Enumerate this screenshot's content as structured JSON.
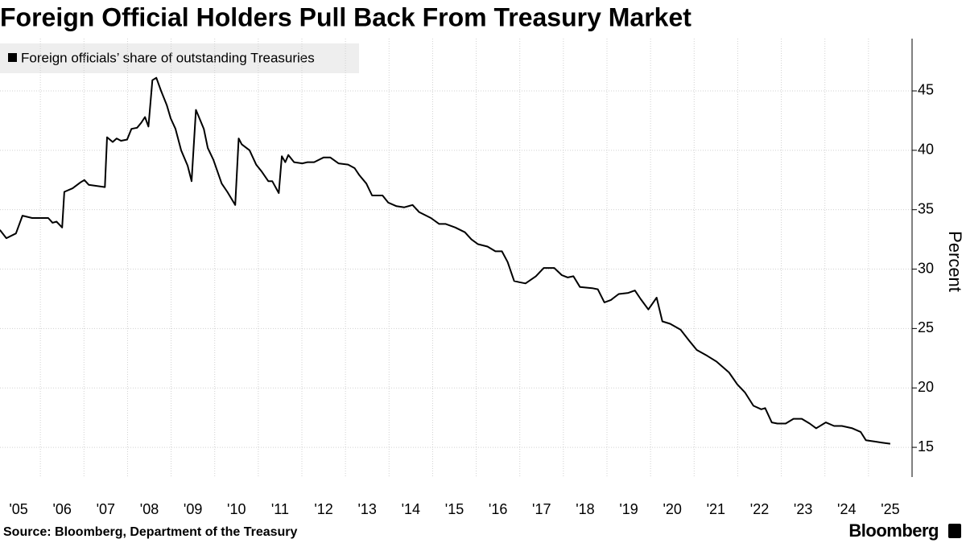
{
  "chart_data": {
    "type": "line",
    "title": "Foreign Official Holders Pull Back From Treasury Market",
    "y_label": "Percent",
    "source": "Source: Bloomberg, Department of the Treasury",
    "logo": "Bloomberg",
    "x": [
      2005.07,
      2005.22,
      2005.44,
      2005.59,
      2005.81,
      2006.18,
      2006.28,
      2006.37,
      2006.5,
      2006.55,
      2006.74,
      2006.92,
      2007.01,
      2007.11,
      2007.48,
      2007.53,
      2007.66,
      2007.75,
      2007.85,
      2007.99,
      2008.09,
      2008.22,
      2008.31,
      2008.4,
      2008.48,
      2008.57,
      2008.66,
      2008.77,
      2008.9,
      2008.99,
      2009.1,
      2009.23,
      2009.38,
      2009.47,
      2009.57,
      2009.66,
      2009.75,
      2009.84,
      2009.97,
      2010.16,
      2010.29,
      2010.47,
      2010.55,
      2010.62,
      2010.8,
      2010.95,
      2011.08,
      2011.23,
      2011.32,
      2011.47,
      2011.54,
      2011.62,
      2011.69,
      2011.82,
      2012.01,
      2012.13,
      2012.28,
      2012.5,
      2012.65,
      2012.84,
      2013.06,
      2013.21,
      2013.32,
      2013.48,
      2013.61,
      2013.85,
      2013.98,
      2014.17,
      2014.35,
      2014.54,
      2014.69,
      2014.96,
      2015.15,
      2015.3,
      2015.52,
      2015.74,
      2015.89,
      2016.04,
      2016.26,
      2016.44,
      2016.59,
      2016.72,
      2016.87,
      2016.99,
      2017.13,
      2017.37,
      2017.55,
      2017.79,
      2017.96,
      2018.1,
      2018.23,
      2018.38,
      2018.66,
      2018.79,
      2018.94,
      2019.09,
      2019.27,
      2019.49,
      2019.64,
      2019.77,
      2019.95,
      2020.14,
      2020.27,
      2020.45,
      2020.69,
      2020.88,
      2021.06,
      2021.3,
      2021.52,
      2021.8,
      2021.99,
      2022.17,
      2022.36,
      2022.54,
      2022.63,
      2022.78,
      2022.91,
      2023.1,
      2023.28,
      2023.47,
      2023.65,
      2023.8,
      2024.02,
      2024.21,
      2024.39,
      2024.63,
      2024.82,
      2024.94,
      2025.13,
      2025.31,
      2025.5
    ],
    "series": [
      {
        "name": "Foreign officials’ share of outstanding Treasuries",
        "color": "#000000",
        "values": [
          33.3,
          32.6,
          33.0,
          34.5,
          34.3,
          34.3,
          33.9,
          34.0,
          33.5,
          36.5,
          36.8,
          37.3,
          37.5,
          37.1,
          36.9,
          41.1,
          40.7,
          41.0,
          40.8,
          40.9,
          41.8,
          41.9,
          42.3,
          42.8,
          42.0,
          45.9,
          46.1,
          45.0,
          43.8,
          42.7,
          41.8,
          40.0,
          38.7,
          37.4,
          43.4,
          42.6,
          41.8,
          40.2,
          39.2,
          37.2,
          36.5,
          35.4,
          41.0,
          40.5,
          40.0,
          38.8,
          38.2,
          37.4,
          37.4,
          36.4,
          39.5,
          39.0,
          39.6,
          39.0,
          38.9,
          39.0,
          39.0,
          39.4,
          39.4,
          38.9,
          38.8,
          38.5,
          37.9,
          37.2,
          36.2,
          36.2,
          35.6,
          35.3,
          35.2,
          35.4,
          34.8,
          34.3,
          33.8,
          33.8,
          33.5,
          33.1,
          32.5,
          32.1,
          31.9,
          31.5,
          31.5,
          30.6,
          29.0,
          28.9,
          28.8,
          29.4,
          30.1,
          30.1,
          29.5,
          29.3,
          29.4,
          28.5,
          28.4,
          28.3,
          27.2,
          27.4,
          27.9,
          28.0,
          28.2,
          27.5,
          26.6,
          27.6,
          25.6,
          25.4,
          24.9,
          24.0,
          23.2,
          22.7,
          22.2,
          21.3,
          20.3,
          19.6,
          18.5,
          18.2,
          18.3,
          17.1,
          17.0,
          17.0,
          17.4,
          17.4,
          17.0,
          16.6,
          17.1,
          16.8,
          16.8,
          16.6,
          16.3,
          15.6,
          15.5,
          15.4,
          15.3
        ]
      }
    ],
    "xlim": [
      2005,
      2026
    ],
    "xticks": [
      {
        "value": 2005,
        "label": "'05"
      },
      {
        "value": 2006,
        "label": "'06"
      },
      {
        "value": 2007,
        "label": "'07"
      },
      {
        "value": 2008,
        "label": "'08"
      },
      {
        "value": 2009,
        "label": "'09"
      },
      {
        "value": 2010,
        "label": "'10"
      },
      {
        "value": 2011,
        "label": "'11"
      },
      {
        "value": 2012,
        "label": "'12"
      },
      {
        "value": 2013,
        "label": "'13"
      },
      {
        "value": 2014,
        "label": "'14"
      },
      {
        "value": 2015,
        "label": "'15"
      },
      {
        "value": 2016,
        "label": "'16"
      },
      {
        "value": 2017,
        "label": "'17"
      },
      {
        "value": 2018,
        "label": "'18"
      },
      {
        "value": 2019,
        "label": "'19"
      },
      {
        "value": 2020,
        "label": "'20"
      },
      {
        "value": 2021,
        "label": "'21"
      },
      {
        "value": 2022,
        "label": "'22"
      },
      {
        "value": 2023,
        "label": "'23"
      },
      {
        "value": 2024,
        "label": "'24"
      },
      {
        "value": 2025,
        "label": "'25"
      }
    ],
    "ylim": [
      12.5,
      49.4
    ],
    "yticks": [
      15,
      20,
      25,
      30,
      35,
      40,
      45
    ],
    "grid": true
  }
}
